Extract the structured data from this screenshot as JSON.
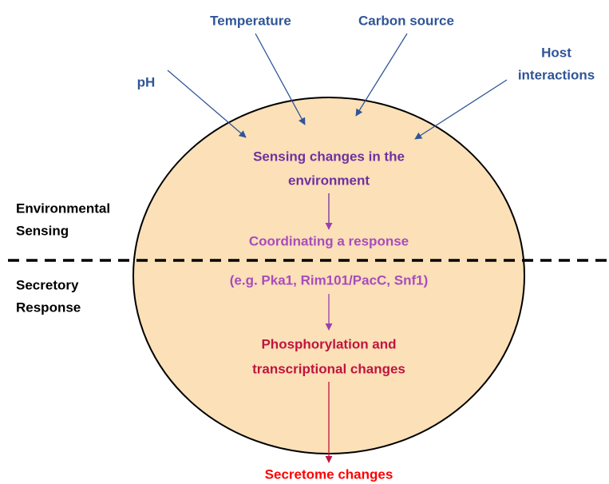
{
  "inputs": [
    {
      "lines": [
        "pH"
      ]
    },
    {
      "lines": [
        "Temperature"
      ]
    },
    {
      "lines": [
        "Carbon source"
      ]
    },
    {
      "lines": [
        "Host",
        "interactions"
      ]
    }
  ],
  "steps": [
    {
      "lines": [
        "Sensing changes in the",
        "environment"
      ]
    },
    {
      "lines": [
        "Coordinating a response",
        "(e.g. Pka1, Rim101/PacC, Snf1)"
      ]
    },
    {
      "lines": [
        "Phosphorylation and",
        "transcriptional changes"
      ]
    },
    {
      "lines": [
        "Secretome changes"
      ]
    }
  ],
  "sections": [
    {
      "lines": [
        "Environmental",
        "Sensing"
      ]
    },
    {
      "lines": [
        "Secretory",
        "Response"
      ]
    }
  ]
}
